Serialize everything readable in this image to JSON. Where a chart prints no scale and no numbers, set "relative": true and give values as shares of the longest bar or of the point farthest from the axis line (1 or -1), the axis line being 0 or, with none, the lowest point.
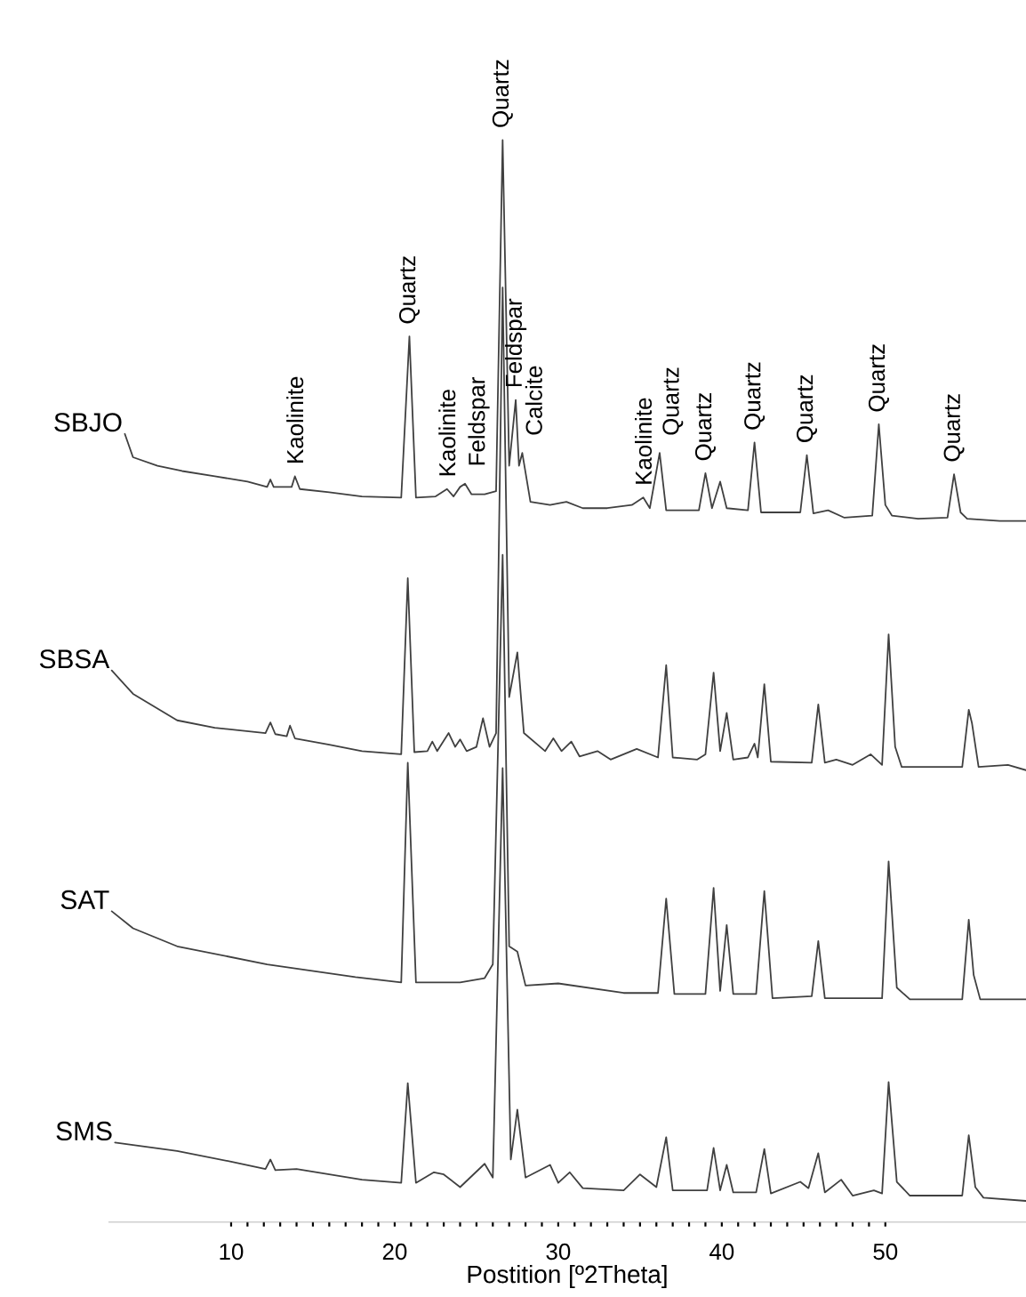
{
  "chart_data": {
    "type": "line",
    "relative": true,
    "xlabel": "Postition [º2Theta]",
    "xlim": [
      2.5,
      58.6
    ],
    "xticks": [
      10,
      20,
      30,
      40,
      50
    ],
    "marker": "none",
    "series": [
      {
        "name": "SBJO",
        "color": "#404040",
        "x": [
          3.5,
          4.0,
          5.5,
          7,
          9,
          11,
          12.2,
          12.4,
          12.6,
          13.7,
          13.9,
          14.2,
          16,
          18,
          20.4,
          20.9,
          21.3,
          22.5,
          23.2,
          23.6,
          24.0,
          24.3,
          24.7,
          25.5,
          26.2,
          26.6,
          27.0,
          27.4,
          27.6,
          27.8,
          28.3,
          29.5,
          30.5,
          31.5,
          33,
          34.5,
          35.2,
          35.6,
          36.2,
          36.6,
          38.6,
          39.0,
          39.4,
          39.9,
          40.3,
          41.6,
          42.0,
          42.4,
          44.8,
          45.2,
          45.6,
          46.5,
          47.5,
          49.2,
          49.6,
          50.0,
          50.4,
          52,
          53.8,
          54.2,
          54.6,
          55,
          57,
          58.6
        ],
        "values": [
          0.723,
          0.701,
          0.693,
          0.688,
          0.683,
          0.678,
          0.673,
          0.68,
          0.673,
          0.673,
          0.683,
          0.671,
          0.668,
          0.664,
          0.663,
          0.815,
          0.663,
          0.664,
          0.671,
          0.664,
          0.673,
          0.676,
          0.666,
          0.666,
          0.669,
          1.0,
          0.693,
          0.755,
          0.693,
          0.705,
          0.659,
          0.656,
          0.659,
          0.653,
          0.653,
          0.656,
          0.663,
          0.653,
          0.705,
          0.651,
          0.651,
          0.686,
          0.653,
          0.678,
          0.653,
          0.651,
          0.715,
          0.649,
          0.649,
          0.703,
          0.648,
          0.651,
          0.644,
          0.646,
          0.732,
          0.656,
          0.646,
          0.643,
          0.644,
          0.685,
          0.649,
          0.643,
          0.641,
          0.641
        ]
      },
      {
        "name": "SBSA",
        "color": "#404040",
        "x": [
          2.7,
          4,
          6.7,
          9,
          12.1,
          12.4,
          12.7,
          13.4,
          13.6,
          13.9,
          16,
          18,
          20.4,
          20.8,
          21.2,
          22.0,
          22.3,
          22.6,
          23.3,
          23.7,
          24.0,
          24.4,
          25.0,
          25.4,
          25.8,
          26.2,
          26.6,
          27.0,
          27.5,
          27.9,
          29.2,
          29.7,
          30.2,
          30.8,
          31.3,
          32.4,
          33.2,
          34.8,
          36.1,
          36.6,
          37.0,
          38.5,
          39.0,
          39.5,
          39.9,
          40.3,
          40.7,
          41.6,
          42.0,
          42.2,
          42.6,
          43.0,
          45.5,
          45.9,
          46.3,
          47.0,
          48.0,
          49.1,
          49.8,
          50.2,
          50.6,
          51.0,
          54.7,
          55.1,
          55.3,
          55.7,
          57.5,
          58.6
        ],
        "values": [
          0.5,
          0.478,
          0.453,
          0.446,
          0.441,
          0.451,
          0.44,
          0.438,
          0.448,
          0.436,
          0.43,
          0.424,
          0.421,
          0.587,
          0.423,
          0.424,
          0.433,
          0.424,
          0.441,
          0.428,
          0.435,
          0.424,
          0.428,
          0.455,
          0.428,
          0.441,
          0.861,
          0.475,
          0.517,
          0.441,
          0.424,
          0.436,
          0.424,
          0.433,
          0.419,
          0.424,
          0.416,
          0.426,
          0.418,
          0.505,
          0.418,
          0.416,
          0.421,
          0.498,
          0.424,
          0.46,
          0.416,
          0.418,
          0.431,
          0.418,
          0.487,
          0.414,
          0.413,
          0.468,
          0.413,
          0.416,
          0.411,
          0.421,
          0.411,
          0.534,
          0.428,
          0.409,
          0.409,
          0.463,
          0.45,
          0.409,
          0.411,
          0.406
        ]
      },
      {
        "name": "SAT",
        "color": "#404040",
        "x": [
          2.7,
          4,
          6.7,
          12.2,
          17.6,
          20.4,
          20.8,
          21.3,
          24,
          25.5,
          26.0,
          26.6,
          27.0,
          27.5,
          28.0,
          30,
          34,
          36.1,
          36.6,
          37.1,
          39.0,
          39.5,
          39.9,
          40.3,
          40.7,
          42.1,
          42.6,
          43.1,
          45.5,
          45.9,
          46.3,
          49.8,
          50.2,
          50.7,
          51.5,
          54.7,
          55.1,
          55.4,
          55.8,
          58.6
        ],
        "values": [
          0.273,
          0.257,
          0.24,
          0.223,
          0.211,
          0.206,
          0.413,
          0.206,
          0.206,
          0.21,
          0.223,
          0.609,
          0.24,
          0.235,
          0.203,
          0.205,
          0.196,
          0.196,
          0.285,
          0.195,
          0.195,
          0.295,
          0.198,
          0.26,
          0.195,
          0.195,
          0.292,
          0.191,
          0.193,
          0.245,
          0.191,
          0.191,
          0.32,
          0.201,
          0.19,
          0.19,
          0.265,
          0.213,
          0.19,
          0.19
        ]
      },
      {
        "name": "SMS",
        "color": "#404040",
        "x": [
          2.9,
          6.7,
          10,
          12.1,
          12.4,
          12.7,
          14,
          18,
          20.4,
          20.8,
          21.3,
          22.4,
          23.0,
          24.0,
          25.5,
          26.0,
          26.6,
          27.1,
          27.5,
          28.0,
          29.5,
          30.0,
          30.7,
          31.5,
          34,
          35,
          36,
          36.6,
          37,
          39.1,
          39.5,
          39.9,
          40.3,
          40.7,
          42.1,
          42.6,
          43.0,
          44.8,
          45.3,
          45.9,
          46.3,
          47.3,
          48.0,
          49.3,
          49.8,
          50.2,
          50.7,
          51.5,
          54.7,
          55.1,
          55.5,
          56.0,
          58.6
        ],
        "values": [
          0.055,
          0.047,
          0.037,
          0.03,
          0.039,
          0.029,
          0.03,
          0.02,
          0.017,
          0.111,
          0.017,
          0.027,
          0.025,
          0.013,
          0.035,
          0.022,
          0.408,
          0.039,
          0.086,
          0.022,
          0.034,
          0.017,
          0.027,
          0.012,
          0.01,
          0.025,
          0.013,
          0.06,
          0.01,
          0.01,
          0.05,
          0.01,
          0.034,
          0.008,
          0.008,
          0.049,
          0.007,
          0.018,
          0.012,
          0.045,
          0.008,
          0.02,
          0.005,
          0.01,
          0.007,
          0.112,
          0.018,
          0.005,
          0.005,
          0.062,
          0.013,
          0.003,
          0.0
        ]
      }
    ],
    "annotations": [
      {
        "text": "Kaolinite",
        "x": 13.9,
        "y": 0.683
      },
      {
        "text": "Quartz",
        "x": 20.9,
        "y": 0.815
      },
      {
        "text": "Kaolinite",
        "x": 23.2,
        "y": 0.671
      },
      {
        "text": "Feldspar",
        "x": 24.3,
        "y": 0.676
      },
      {
        "text": "Quartz",
        "x": 26.6,
        "y": 1.0
      },
      {
        "text": "Feldspar",
        "x": 27.4,
        "y": 0.755
      },
      {
        "text": "Calcite",
        "x": 27.8,
        "y": 0.705
      },
      {
        "text": "Kaolinite",
        "x": 35.2,
        "y": 0.663
      },
      {
        "text": "Quartz",
        "x": 36.2,
        "y": 0.705
      },
      {
        "text": "Quartz",
        "x": 39.0,
        "y": 0.686
      },
      {
        "text": "Quartz",
        "x": 42.0,
        "y": 0.715
      },
      {
        "text": "Quartz",
        "x": 45.2,
        "y": 0.703
      },
      {
        "text": "Quartz",
        "x": 49.6,
        "y": 0.732
      },
      {
        "text": "Quartz",
        "x": 54.2,
        "y": 0.685
      }
    ]
  }
}
